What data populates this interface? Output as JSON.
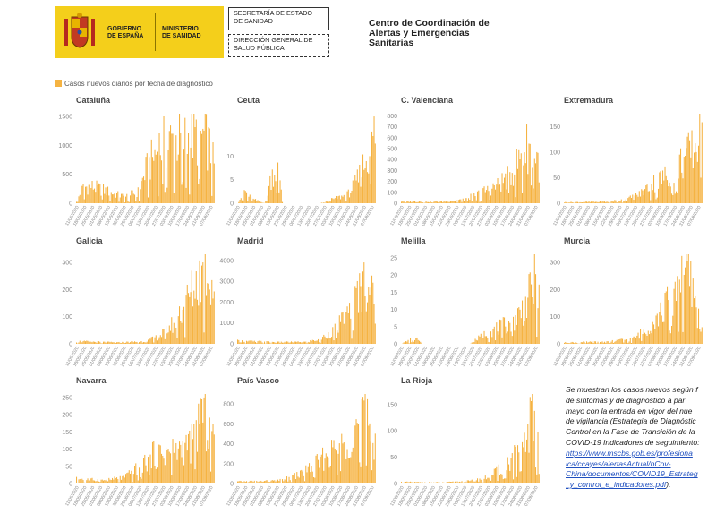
{
  "header": {
    "logo_left": [
      "GOBIERNO",
      "DE ESPAÑA"
    ],
    "logo_right": [
      "MINISTERIO",
      "DE SANIDAD"
    ],
    "box1": [
      "SECRETARÍA DE ESTADO",
      "DE SANIDAD"
    ],
    "box2": [
      "DIRECCIÓN GENERAL DE",
      "SALUD PÚBLICA"
    ],
    "center": [
      "Centro de Coordinación de",
      "Alertas y Emergencias",
      "Sanitarias"
    ]
  },
  "legend_label": "Casos nuevos diarios por fecha de diagnóstico",
  "colors": {
    "bar": "#f5b342",
    "tick": "#888888",
    "title": "#444444"
  },
  "note": {
    "lines": [
      "Se muestran los casos nuevos según f",
      "de síntomas y de diagnóstico a par",
      "mayo con la entrada en vigor del nue",
      "de vigilancia (Estrategia de Diagnóstic",
      "Control en la Fase de Transición de la",
      "COVID-19 Indicadores de seguimiento:"
    ],
    "links": [
      "https://www.mscbs.gob.es/profesiona",
      "ica/ccayes/alertasActual/nCov-",
      "China/documentos/COVID19_Estrateg",
      "_y_control_e_indicadores.pdf"
    ],
    "closing": ")."
  },
  "chart_data": [
    {
      "type": "bar",
      "title": "Cataluña",
      "ylim": [
        0,
        1550
      ],
      "yticks": [
        0,
        500,
        1000,
        1500
      ],
      "x": [
        "11/05/2020",
        "11/09/2020"
      ],
      "pattern": [
        [
          0,
          40
        ],
        [
          0.05,
          300
        ],
        [
          0.1,
          330
        ],
        [
          0.2,
          250
        ],
        [
          0.3,
          160
        ],
        [
          0.35,
          120
        ],
        [
          0.45,
          220
        ],
        [
          0.5,
          600
        ],
        [
          0.6,
          1100
        ],
        [
          0.7,
          1200
        ],
        [
          0.8,
          1230
        ],
        [
          0.9,
          1300
        ],
        [
          0.95,
          1200
        ],
        [
          1,
          700
        ]
      ]
    },
    {
      "type": "bar",
      "title": "Ceuta",
      "ylim": [
        0,
        19
      ],
      "yticks": [
        0,
        5,
        10
      ],
      "x": [
        "11/05/2020",
        "11/09/2020"
      ],
      "pattern": [
        [
          0,
          0
        ],
        [
          0.05,
          3
        ],
        [
          0.1,
          1
        ],
        [
          0.2,
          0
        ],
        [
          0.25,
          7
        ],
        [
          0.3,
          8
        ],
        [
          0.33,
          0
        ],
        [
          0.6,
          0
        ],
        [
          0.7,
          1
        ],
        [
          0.8,
          2
        ],
        [
          0.88,
          6
        ],
        [
          0.95,
          12
        ],
        [
          1,
          17
        ]
      ]
    },
    {
      "type": "bar",
      "title": "C. Valenciana",
      "ylim": [
        0,
        820
      ],
      "yticks": [
        0,
        100,
        200,
        300,
        400,
        500,
        600,
        700,
        800
      ],
      "x": [
        "11/05/2020",
        "11/09/2020"
      ],
      "pattern": [
        [
          0,
          20
        ],
        [
          0.3,
          15
        ],
        [
          0.45,
          40
        ],
        [
          0.6,
          120
        ],
        [
          0.7,
          180
        ],
        [
          0.8,
          300
        ],
        [
          0.88,
          500
        ],
        [
          0.94,
          620
        ],
        [
          1,
          400
        ]
      ]
    },
    {
      "type": "bar",
      "title": "Extremadura",
      "ylim": [
        0,
        175
      ],
      "yticks": [
        0,
        50,
        100,
        150
      ],
      "x": [
        "11/05/2020",
        "11/09/2020"
      ],
      "pattern": [
        [
          0,
          2
        ],
        [
          0.3,
          3
        ],
        [
          0.45,
          8
        ],
        [
          0.55,
          20
        ],
        [
          0.65,
          45
        ],
        [
          0.75,
          60
        ],
        [
          0.85,
          90
        ],
        [
          0.95,
          120
        ],
        [
          1,
          160
        ]
      ]
    },
    {
      "type": "bar",
      "title": "Galicia",
      "ylim": [
        0,
        330
      ],
      "yticks": [
        0,
        100,
        200,
        300
      ],
      "x": [
        "11/05/2020",
        "11/09/2020"
      ],
      "pattern": [
        [
          0,
          10
        ],
        [
          0.3,
          5
        ],
        [
          0.5,
          10
        ],
        [
          0.6,
          30
        ],
        [
          0.7,
          80
        ],
        [
          0.8,
          170
        ],
        [
          0.9,
          280
        ],
        [
          0.95,
          310
        ],
        [
          1,
          220
        ]
      ]
    },
    {
      "type": "bar",
      "title": "Madrid",
      "ylim": [
        0,
        4300
      ],
      "yticks": [
        0,
        1000,
        2000,
        3000,
        4000
      ],
      "x": [
        "11/05/2020",
        "11/09/2020"
      ],
      "pattern": [
        [
          0,
          150
        ],
        [
          0.3,
          80
        ],
        [
          0.5,
          100
        ],
        [
          0.6,
          250
        ],
        [
          0.7,
          700
        ],
        [
          0.8,
          1500
        ],
        [
          0.88,
          2800
        ],
        [
          0.95,
          3600
        ],
        [
          1,
          1700
        ]
      ]
    },
    {
      "type": "bar",
      "title": "Melilla",
      "ylim": [
        0,
        26
      ],
      "yticks": [
        0,
        5,
        10,
        15,
        20,
        25
      ],
      "x": [
        "11/05/2020",
        "11/09/2020"
      ],
      "pattern": [
        [
          0,
          0
        ],
        [
          0.1,
          2
        ],
        [
          0.15,
          0
        ],
        [
          0.5,
          0
        ],
        [
          0.6,
          3
        ],
        [
          0.7,
          5
        ],
        [
          0.8,
          7
        ],
        [
          0.9,
          12
        ],
        [
          0.97,
          20
        ],
        [
          1,
          14
        ]
      ]
    },
    {
      "type": "bar",
      "title": "Murcia",
      "ylim": [
        0,
        330
      ],
      "yticks": [
        0,
        100,
        200,
        300
      ],
      "x": [
        "11/05/2020",
        "11/09/2020"
      ],
      "pattern": [
        [
          0,
          5
        ],
        [
          0.3,
          8
        ],
        [
          0.5,
          20
        ],
        [
          0.6,
          60
        ],
        [
          0.7,
          120
        ],
        [
          0.8,
          220
        ],
        [
          0.87,
          310
        ],
        [
          0.92,
          240
        ],
        [
          1,
          50
        ]
      ]
    },
    {
      "type": "bar",
      "title": "Navarra",
      "ylim": [
        0,
        260
      ],
      "yticks": [
        0,
        50,
        100,
        150,
        200,
        250
      ],
      "x": [
        "11/05/2020",
        "11/09/2020"
      ],
      "pattern": [
        [
          0,
          15
        ],
        [
          0.2,
          10
        ],
        [
          0.35,
          20
        ],
        [
          0.45,
          50
        ],
        [
          0.55,
          90
        ],
        [
          0.65,
          100
        ],
        [
          0.75,
          110
        ],
        [
          0.85,
          130
        ],
        [
          0.9,
          230
        ],
        [
          1,
          150
        ]
      ]
    },
    {
      "type": "bar",
      "title": "País Vasco",
      "ylim": [
        0,
        900
      ],
      "yticks": [
        0,
        200,
        400,
        600,
        800
      ],
      "x": [
        "11/05/2020",
        "11/09/2020"
      ],
      "pattern": [
        [
          0,
          20
        ],
        [
          0.3,
          30
        ],
        [
          0.45,
          100
        ],
        [
          0.55,
          200
        ],
        [
          0.65,
          300
        ],
        [
          0.75,
          420
        ],
        [
          0.85,
          600
        ],
        [
          0.92,
          780
        ],
        [
          1,
          500
        ]
      ]
    },
    {
      "type": "bar",
      "title": "La Rioja",
      "ylim": [
        0,
        170
      ],
      "yticks": [
        0,
        50,
        100,
        150
      ],
      "x": [
        "11/05/2020",
        "11/09/2020"
      ],
      "pattern": [
        [
          0,
          3
        ],
        [
          0.3,
          2
        ],
        [
          0.5,
          5
        ],
        [
          0.6,
          10
        ],
        [
          0.7,
          25
        ],
        [
          0.8,
          50
        ],
        [
          0.9,
          80
        ],
        [
          0.95,
          150
        ],
        [
          1,
          100
        ]
      ]
    }
  ]
}
